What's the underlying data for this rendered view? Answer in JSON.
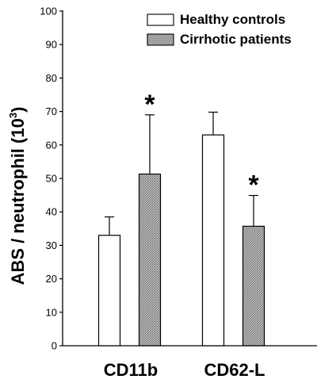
{
  "chart_data": {
    "type": "bar",
    "categories": [
      "CD11b",
      "CD62-L"
    ],
    "series": [
      {
        "name": "Healthy controls",
        "values": [
          33,
          63
        ],
        "errors": [
          5.5,
          6.8
        ],
        "fill": "#ffffff"
      },
      {
        "name": "Cirrhotic patients",
        "values": [
          51.3,
          35.7
        ],
        "errors": [
          17.7,
          9.2
        ],
        "fill": "#a8a8a8"
      }
    ],
    "significance": [
      {
        "category": "CD11b",
        "series": "Cirrhotic patients",
        "mark": "*"
      },
      {
        "category": "CD62-L",
        "series": "Cirrhotic patients",
        "mark": "*"
      }
    ],
    "ylabel": {
      "main": "ABS / neutrophil  (10",
      "sup": "3",
      "close": ")"
    },
    "ylim": [
      0,
      100
    ],
    "yticks": [
      0,
      10,
      20,
      30,
      40,
      50,
      60,
      70,
      80,
      90,
      100
    ],
    "legend_position": "top-right",
    "grid": false
  }
}
